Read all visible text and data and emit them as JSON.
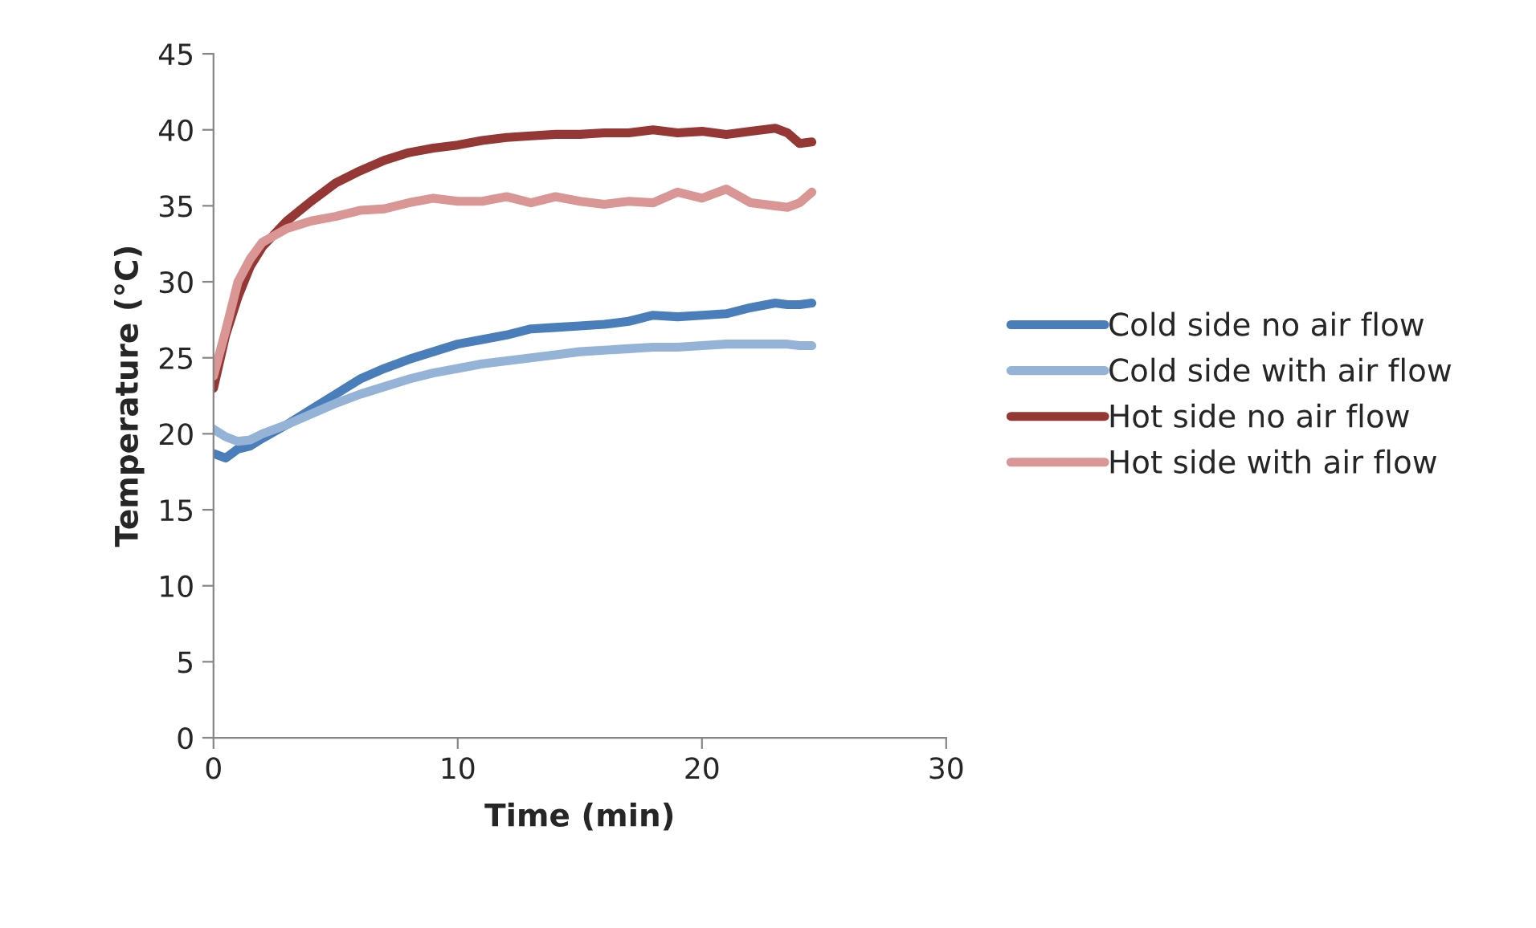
{
  "chart_data": {
    "type": "line",
    "xlabel": "Time (min)",
    "ylabel": "Temperature (°C)",
    "xlim": [
      0,
      30
    ],
    "xticks": [
      0,
      10,
      20,
      30
    ],
    "ylim": [
      0,
      45
    ],
    "yticks": [
      0,
      5,
      10,
      15,
      20,
      25,
      30,
      35,
      40,
      45
    ],
    "grid": false,
    "legend": "right",
    "marker": "none",
    "line_style": "solid",
    "x": [
      0,
      0.5,
      1,
      1.5,
      2,
      3,
      4,
      5,
      6,
      7,
      8,
      9,
      10,
      11,
      12,
      13,
      14,
      15,
      16,
      17,
      18,
      19,
      20,
      21,
      22,
      23,
      23.5,
      24,
      24.5
    ],
    "series": [
      {
        "name": "Cold side no air flow",
        "color": "#4a7ebb",
        "values": [
          18.7,
          18.4,
          19,
          19.2,
          19.7,
          20.6,
          21.6,
          22.6,
          23.6,
          24.3,
          24.9,
          25.4,
          25.9,
          26.2,
          26.5,
          26.9,
          27,
          27.1,
          27.2,
          27.4,
          27.8,
          27.7,
          27.8,
          27.9,
          28.3,
          28.6,
          28.5,
          28.5,
          28.6
        ]
      },
      {
        "name": "Cold side with air flow",
        "color": "#95b3d7",
        "values": [
          20.3,
          19.8,
          19.5,
          19.6,
          20,
          20.6,
          21.3,
          22,
          22.6,
          23.1,
          23.6,
          24,
          24.3,
          24.6,
          24.8,
          25,
          25.2,
          25.4,
          25.5,
          25.6,
          25.7,
          25.7,
          25.8,
          25.9,
          25.9,
          25.9,
          25.9,
          25.8,
          25.8
        ]
      },
      {
        "name": "Hot side no air flow",
        "color": "#953735",
        "values": [
          23,
          26.5,
          29,
          31,
          32.3,
          34,
          35.3,
          36.5,
          37.3,
          38,
          38.5,
          38.8,
          39,
          39.3,
          39.5,
          39.6,
          39.7,
          39.7,
          39.8,
          39.8,
          40,
          39.8,
          39.9,
          39.7,
          39.9,
          40.1,
          39.8,
          39.1,
          39.2
        ]
      },
      {
        "name": "Hot side with air flow",
        "color": "#d99694",
        "values": [
          23.8,
          26.8,
          30,
          31.5,
          32.6,
          33.5,
          34,
          34.3,
          34.7,
          34.8,
          35.2,
          35.5,
          35.3,
          35.3,
          35.6,
          35.2,
          35.6,
          35.3,
          35.1,
          35.3,
          35.2,
          35.9,
          35.5,
          36.1,
          35.2,
          35,
          34.9,
          35.2,
          35.9
        ]
      }
    ]
  }
}
